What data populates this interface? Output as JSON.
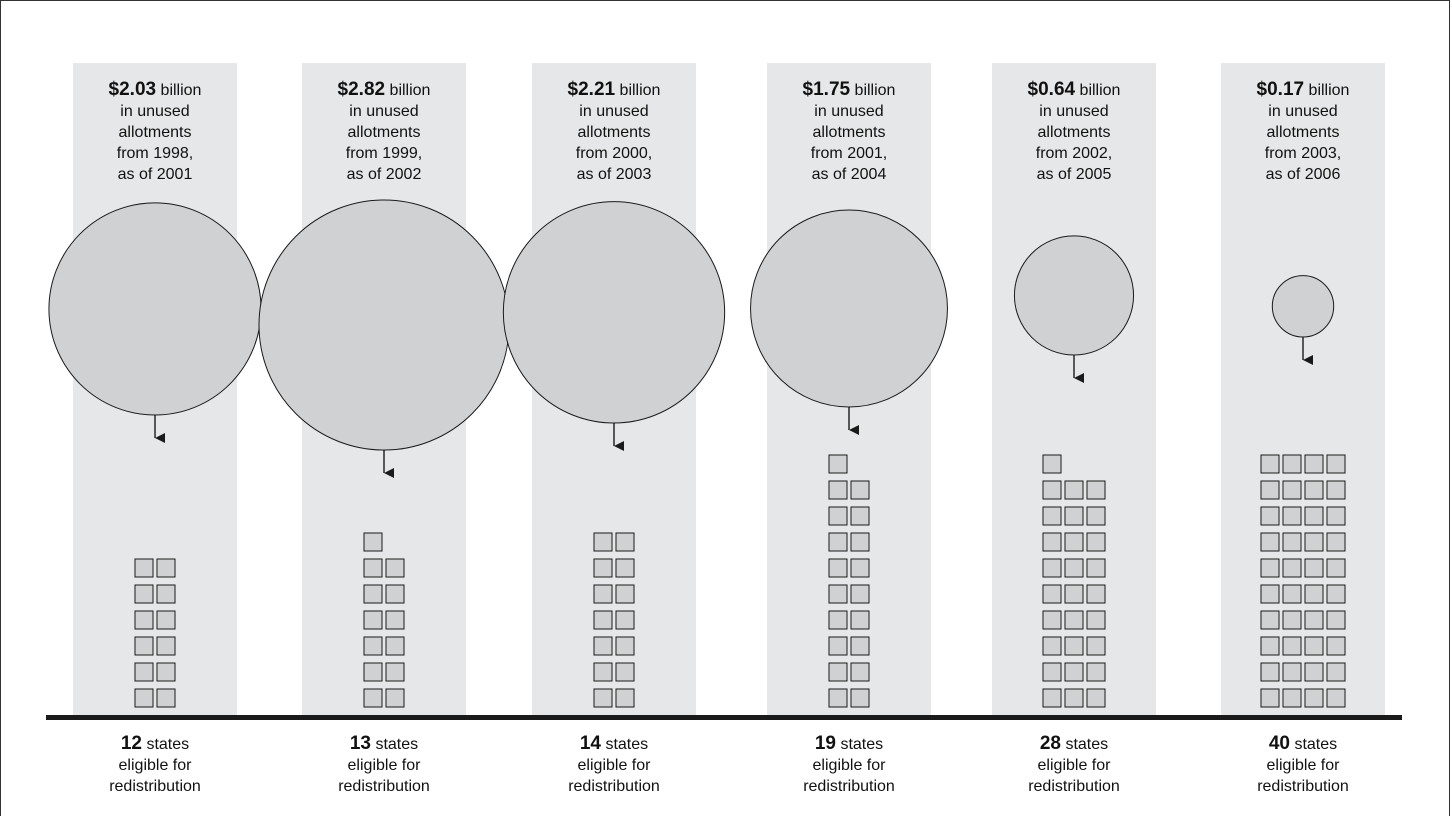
{
  "colors": {
    "panel": "#e6e7e8",
    "bubble": "#d0d1d3",
    "square": "#d0d1d3",
    "stroke": "#1a1a1a",
    "baseline": "#1a1a1a"
  },
  "chart_data": {
    "type": "bubble-pictogram",
    "title": "",
    "value_unit": "billion",
    "count_unit": "states",
    "columns": [
      {
        "amount": "$2.03",
        "unit": "billion",
        "desc": [
          "in unused",
          "allotments",
          "from 1998,",
          "as of 2001"
        ],
        "value": 2.03,
        "states": 12,
        "count_label": "12",
        "count_unit": "states",
        "footer": [
          "eligible for",
          "redistribution"
        ]
      },
      {
        "amount": "$2.82",
        "unit": "billion",
        "desc": [
          "in unused",
          "allotments",
          "from 1999,",
          "as of 2002"
        ],
        "value": 2.82,
        "states": 13,
        "count_label": "13",
        "count_unit": "states",
        "footer": [
          "eligible for",
          "redistribution"
        ]
      },
      {
        "amount": "$2.21",
        "unit": "billion",
        "desc": [
          "in unused",
          "allotments",
          "from 2000,",
          "as of 2003"
        ],
        "value": 2.21,
        "states": 14,
        "count_label": "14",
        "count_unit": "states",
        "footer": [
          "eligible for",
          "redistribution"
        ]
      },
      {
        "amount": "$1.75",
        "unit": "billion",
        "desc": [
          "in unused",
          "allotments",
          "from 2001,",
          "as of 2004"
        ],
        "value": 1.75,
        "states": 19,
        "count_label": "19",
        "count_unit": "states",
        "footer": [
          "eligible for",
          "redistribution"
        ]
      },
      {
        "amount": "$0.64",
        "unit": "billion",
        "desc": [
          "in unused",
          "allotments",
          "from 2002,",
          "as of 2005"
        ],
        "value": 0.64,
        "states": 28,
        "count_label": "28",
        "count_unit": "states",
        "footer": [
          "eligible for",
          "redistribution"
        ]
      },
      {
        "amount": "$0.17",
        "unit": "billion",
        "desc": [
          "in unused",
          "allotments",
          "from 2003,",
          "as of 2006"
        ],
        "value": 0.17,
        "states": 40,
        "count_label": "40",
        "count_unit": "states",
        "footer": [
          "eligible for",
          "redistribution"
        ]
      }
    ]
  }
}
